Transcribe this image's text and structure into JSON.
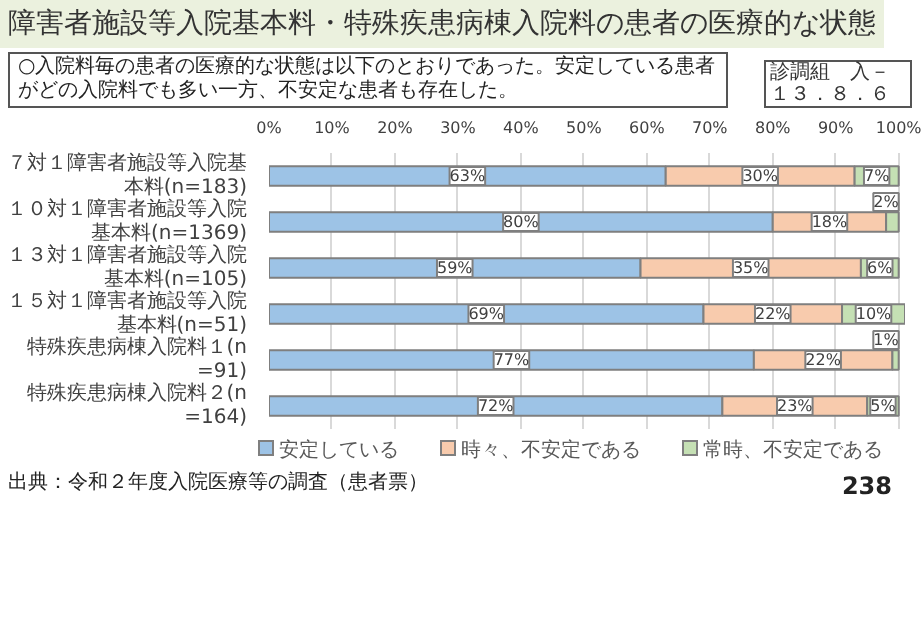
{
  "chart_data": {
    "type": "bar",
    "orientation": "horizontal",
    "stacked": true,
    "title": "障害者施設等入院基本料・特殊疾患病棟入院料の患者の医療的な状態",
    "subtitle": "○入院料毎の患者の医療的な状態は以下のとおりであった。安定している患者がどの入院料でも多い一方、不安定な患者も存在した。",
    "annotations": [
      "診調組　入－１３．８．６",
      "出典：令和２年度入院医療等の調査（患者票）",
      "238"
    ],
    "categories": [
      "７対１障害者施設等入院基本料(n=183)",
      "１０対１障害者施設等入院基本料(n=1369)",
      "１３対１障害者施設等入院基本料(n=105)",
      "１５対１障害者施設等入院基本料(n=51)",
      "特殊疾患病棟入院料１(n=91)",
      "特殊疾患病棟入院料２(n=164)"
    ],
    "series": [
      {
        "name": "安定している",
        "color": "#9dc3e6",
        "values": [
          63,
          80,
          59,
          69,
          77,
          72
        ],
        "value_labels": [
          "63%",
          "80%",
          "59%",
          "69%",
          "77%",
          "72%"
        ]
      },
      {
        "name": "時々、不安定である",
        "color": "#f8cbad",
        "values": [
          30,
          18,
          35,
          22,
          22,
          23
        ],
        "value_labels": [
          "30%",
          "18%",
          "35%",
          "22%",
          "22%",
          "23%"
        ]
      },
      {
        "name": "常時、不安定である",
        "color": "#c5e0b4",
        "values": [
          7,
          2,
          6,
          10,
          1,
          5
        ],
        "value_labels": [
          "7%",
          "2%",
          "6%",
          "10%",
          "1%",
          "5%"
        ]
      }
    ],
    "xlim": [
      0,
      101
    ],
    "xticks": [
      {
        "value": 0,
        "label": "0%"
      },
      {
        "value": 10,
        "label": "10%"
      },
      {
        "value": 20,
        "label": "20%"
      },
      {
        "value": 30,
        "label": "30%"
      },
      {
        "value": 40,
        "label": "40%"
      },
      {
        "value": 50,
        "label": "50%"
      },
      {
        "value": 60,
        "label": "60%"
      },
      {
        "value": 70,
        "label": "70%"
      },
      {
        "value": 80,
        "label": "80%"
      },
      {
        "value": 90,
        "label": "90%"
      },
      {
        "value": 100,
        "label": "100%"
      }
    ],
    "grid": "x",
    "legend": "bottom"
  }
}
